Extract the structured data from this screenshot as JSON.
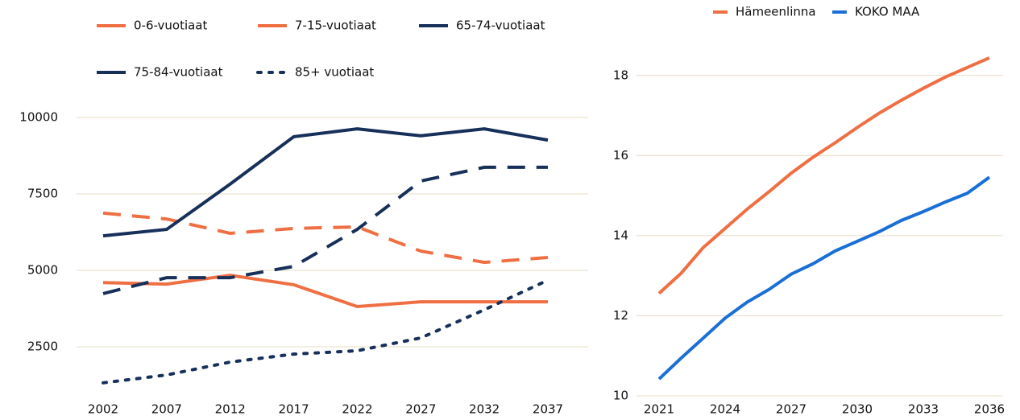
{
  "chart_data": [
    {
      "type": "line",
      "categories": [
        "2002",
        "2007",
        "2012",
        "2017",
        "2022",
        "2027",
        "2032",
        "2037"
      ],
      "ylim": [
        1000,
        11000
      ],
      "yticks": [
        2500,
        5000,
        7500,
        10000
      ],
      "grid": true,
      "series": [
        {
          "name": "0-6-vuotiaat",
          "color": "#ef6f43",
          "dash": "solid",
          "values": [
            4600,
            4550,
            4840,
            4530,
            3815,
            3970,
            3970,
            3970
          ]
        },
        {
          "name": "7-15-vuotiaat",
          "color": "#ef6f43",
          "dash": "dashed",
          "values": [
            6870,
            6680,
            6210,
            6370,
            6420,
            5630,
            5260,
            5420
          ]
        },
        {
          "name": "65-74-vuotiaat",
          "color": "#17305a",
          "dash": "solid",
          "values": [
            6130,
            6340,
            7820,
            9370,
            9630,
            9400,
            9630,
            9260
          ]
        },
        {
          "name": "75-84-vuotiaat",
          "color": "#17305a",
          "dash": "dashed",
          "values": [
            4240,
            4760,
            4760,
            5130,
            6340,
            7920,
            8370,
            8370
          ]
        },
        {
          "name": "85+ vuotiaat",
          "color": "#17305a",
          "dash": "dotted",
          "values": [
            1320,
            1580,
            2000,
            2260,
            2370,
            2790,
            3710,
            4680
          ]
        }
      ]
    },
    {
      "type": "line",
      "x": [
        2021,
        2022,
        2023,
        2024,
        2025,
        2026,
        2027,
        2028,
        2029,
        2030,
        2031,
        2032,
        2033,
        2034,
        2035,
        2036
      ],
      "xlim": [
        2021,
        2036
      ],
      "xticks": [
        2021,
        2024,
        2027,
        2030,
        2033,
        2036
      ],
      "ylim": [
        10,
        19
      ],
      "yticks": [
        10,
        12,
        14,
        16,
        18
      ],
      "grid": true,
      "series": [
        {
          "name": "Hämeenlinna",
          "color": "#ef6f43",
          "dash": "solid",
          "values": [
            12.56,
            13.06,
            13.7,
            14.18,
            14.66,
            15.1,
            15.56,
            15.96,
            16.32,
            16.7,
            17.06,
            17.38,
            17.68,
            17.96,
            18.2,
            18.44
          ]
        },
        {
          "name": "KOKO MAA",
          "color": "#1a6fd6",
          "dash": "solid",
          "values": [
            10.42,
            10.94,
            11.44,
            11.94,
            12.34,
            12.66,
            13.04,
            13.3,
            13.62,
            13.86,
            14.1,
            14.38,
            14.6,
            14.84,
            15.06,
            15.46
          ]
        }
      ]
    }
  ]
}
